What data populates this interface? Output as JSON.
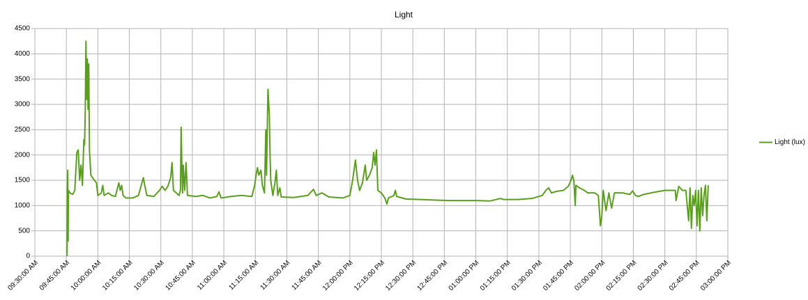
{
  "chart_data": {
    "type": "line",
    "title": "Light",
    "x": [
      "09:45:20 AM",
      "09:45:30 AM",
      "09:45:40 AM",
      "09:45:50 AM",
      "09:46:00 AM",
      "09:46:40 AM",
      "09:48:00 AM",
      "09:49:00 AM",
      "09:50:00 AM",
      "09:50:40 AM",
      "09:51:20 AM",
      "09:52:00 AM",
      "09:52:40 AM",
      "09:53:20 AM",
      "09:53:40 AM",
      "09:54:00 AM",
      "09:54:20 AM",
      "09:54:40 AM",
      "09:55:00 AM",
      "09:55:20 AM",
      "09:55:40 AM",
      "09:56:00 AM",
      "09:56:40 AM",
      "09:58:20 AM",
      "09:59:20 AM",
      "10:00:00 AM",
      "10:01:40 AM",
      "10:02:20 AM",
      "10:03:00 AM",
      "10:05:00 AM",
      "10:06:40 AM",
      "10:08:20 AM",
      "10:10:00 AM",
      "10:10:40 AM",
      "10:11:20 AM",
      "10:12:00 AM",
      "10:13:20 AM",
      "10:16:40 AM",
      "10:19:20 AM",
      "10:21:00 AM",
      "10:21:40 AM",
      "10:22:20 AM",
      "10:23:20 AM",
      "10:26:40 AM",
      "10:29:20 AM",
      "10:30:40 AM",
      "10:32:00 AM",
      "10:33:20 AM",
      "10:34:40 AM",
      "10:35:20 AM",
      "10:36:00 AM",
      "10:37:20 AM",
      "10:38:40 AM",
      "10:39:20 AM",
      "10:39:40 AM",
      "10:40:00 AM",
      "10:40:20 AM",
      "10:40:40 AM",
      "10:41:20 AM",
      "10:42:00 AM",
      "10:42:40 AM",
      "10:46:40 AM",
      "10:50:00 AM",
      "10:53:20 AM",
      "10:56:40 AM",
      "10:57:40 AM",
      "10:58:40 AM",
      "11:03:20 AM",
      "11:08:20 AM",
      "11:13:20 AM",
      "11:14:40 AM",
      "11:15:20 AM",
      "11:16:00 AM",
      "11:16:40 AM",
      "11:17:40 AM",
      "11:18:20 AM",
      "11:19:20 AM",
      "11:20:00 AM",
      "11:20:20 AM",
      "11:21:00 AM",
      "11:21:40 AM",
      "11:22:00 AM",
      "11:22:20 AM",
      "11:23:20 AM",
      "11:24:20 AM",
      "11:25:00 AM",
      "11:25:40 AM",
      "11:26:40 AM",
      "11:27:20 AM",
      "11:33:20 AM",
      "11:40:00 AM",
      "11:42:40 AM",
      "11:44:00 AM",
      "11:46:40 AM",
      "11:50:00 AM",
      "11:56:40 AM",
      "12:00:00 PM",
      "12:01:20 PM",
      "12:02:40 PM",
      "12:03:40 PM",
      "12:04:40 PM",
      "12:06:00 PM",
      "12:07:20 PM",
      "12:08:00 PM",
      "12:09:20 PM",
      "12:10:40 PM",
      "12:11:20 PM",
      "12:12:00 PM",
      "12:12:40 PM",
      "12:13:20 PM",
      "12:15:00 PM",
      "12:16:40 PM",
      "12:17:40 PM",
      "12:18:20 PM",
      "12:20:00 PM",
      "12:21:00 PM",
      "12:21:40 PM",
      "12:22:20 PM",
      "12:26:40 PM",
      "12:33:20 PM",
      "12:46:40 PM",
      "01:00:00 PM",
      "01:06:40 PM",
      "01:11:40 PM",
      "01:13:20 PM",
      "01:20:00 PM",
      "01:26:40 PM",
      "01:31:40 PM",
      "01:33:20 PM",
      "01:34:40 PM",
      "01:36:00 PM",
      "01:38:20 PM",
      "01:41:40 PM",
      "01:44:00 PM",
      "01:45:20 PM",
      "01:46:00 PM",
      "01:46:40 PM",
      "01:47:20 PM",
      "01:47:40 PM",
      "01:49:20 PM",
      "01:51:40 PM",
      "01:53:20 PM",
      "01:56:40 PM",
      "01:58:20 PM",
      "01:59:20 PM",
      "02:00:00 PM",
      "02:00:40 PM",
      "02:02:00 PM",
      "02:03:20 PM",
      "02:04:40 PM",
      "02:06:00 PM",
      "02:10:00 PM",
      "02:13:20 PM",
      "02:14:40 PM",
      "02:16:00 PM",
      "02:17:20 PM",
      "02:20:00 PM",
      "02:23:20 PM",
      "02:30:00 PM",
      "02:35:00 PM",
      "02:35:20 PM",
      "02:36:40 PM",
      "02:38:20 PM",
      "02:40:00 PM",
      "02:41:20 PM",
      "02:42:00 PM",
      "02:42:40 PM",
      "02:43:20 PM",
      "02:44:00 PM",
      "02:44:40 PM",
      "02:45:20 PM",
      "02:46:00 PM",
      "02:46:40 PM",
      "02:47:20 PM",
      "02:48:00 PM",
      "02:48:40 PM",
      "02:49:20 PM",
      "02:50:00 PM",
      "02:50:40 PM"
    ],
    "series": [
      {
        "name": "Light (lux)",
        "color": "#5a9e1f",
        "values": [
          0,
          1300,
          1700,
          300,
          1300,
          1250,
          1220,
          1300,
          2050,
          2100,
          1500,
          1800,
          1400,
          2300,
          2200,
          2850,
          4250,
          3100,
          3900,
          2900,
          3800,
          2100,
          1600,
          1500,
          1450,
          1200,
          1250,
          1400,
          1200,
          1250,
          1200,
          1180,
          1450,
          1300,
          1400,
          1200,
          1150,
          1150,
          1200,
          1450,
          1550,
          1400,
          1200,
          1180,
          1300,
          1380,
          1300,
          1380,
          1550,
          1850,
          1300,
          1250,
          1200,
          1300,
          2550,
          1800,
          1250,
          1800,
          1300,
          1850,
          1200,
          1180,
          1200,
          1150,
          1180,
          1270,
          1150,
          1180,
          1200,
          1180,
          1400,
          1600,
          1750,
          1600,
          1700,
          1400,
          1250,
          2500,
          1600,
          3300,
          2800,
          2000,
          1500,
          1200,
          1450,
          1700,
          1200,
          1350,
          1170,
          1160,
          1200,
          1320,
          1200,
          1250,
          1170,
          1150,
          1200,
          1500,
          1900,
          1500,
          1300,
          1450,
          1800,
          1500,
          1600,
          1750,
          2050,
          1800,
          2100,
          1300,
          1250,
          1150,
          1030,
          1150,
          1180,
          1200,
          1300,
          1180,
          1130,
          1120,
          1100,
          1100,
          1090,
          1140,
          1120,
          1120,
          1140,
          1200,
          1300,
          1350,
          1250,
          1280,
          1300,
          1380,
          1500,
          1600,
          1500,
          1000,
          1400,
          1350,
          1300,
          1250,
          1250,
          1200,
          600,
          800,
          1300,
          900,
          1250,
          950,
          1250,
          1250,
          1220,
          1290,
          1200,
          1180,
          1220,
          1250,
          1300,
          1300,
          1100,
          1380,
          1300,
          1300,
          700,
          1350,
          550,
          1200,
          1000,
          1300,
          600,
          1300,
          500,
          1350,
          800,
          1200,
          1400,
          700,
          1400
        ]
      }
    ],
    "xlim": [
      "09:30:00 AM",
      "03:00:00 PM"
    ],
    "xticks": [
      "09:30:00 AM",
      "09:45:00 AM",
      "10:00:00 AM",
      "10:15:00 AM",
      "10:30:00 AM",
      "10:45:00 AM",
      "11:00:00 AM",
      "11:15:00 AM",
      "11:30:00 AM",
      "11:45:00 AM",
      "12:00:00 PM",
      "12:15:00 PM",
      "12:30:00 PM",
      "12:45:00 PM",
      "01:00:00 PM",
      "01:15:00 PM",
      "01:30:00 PM",
      "01:45:00 PM",
      "02:00:00 PM",
      "02:15:00 PM",
      "02:30:00 PM",
      "02:45:00 PM",
      "03:00:00 PM"
    ],
    "ylim": [
      0,
      4500
    ],
    "yticks": [
      0,
      500,
      1000,
      1500,
      2000,
      2500,
      3000,
      3500,
      4000,
      4500
    ],
    "grid": true,
    "legend": "right"
  }
}
